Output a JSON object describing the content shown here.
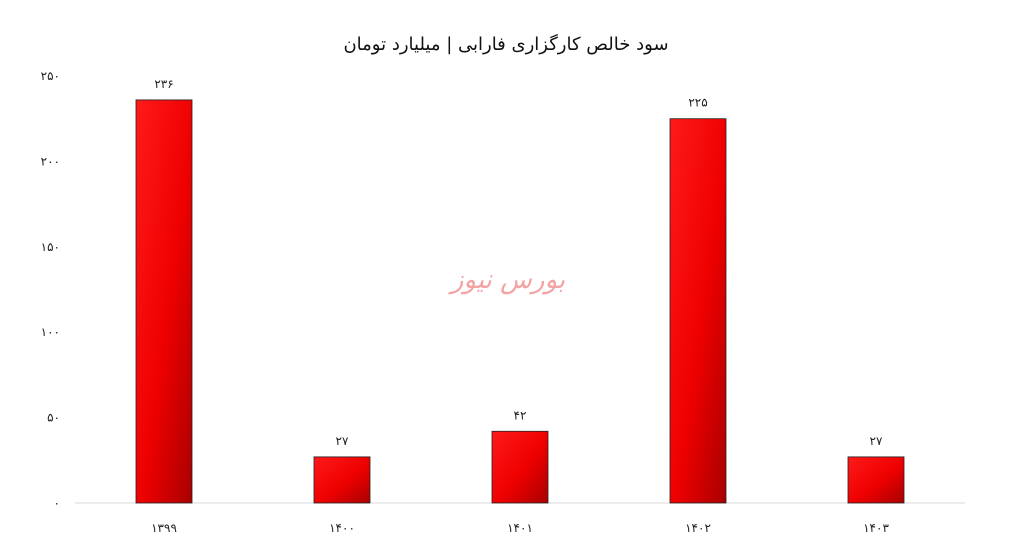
{
  "chart_data": {
    "type": "bar",
    "title": "سود خالص کارگزاری فارابی | میلیارد تومان",
    "categories": [
      "۱۳۹۹",
      "۱۴۰۰",
      "۱۴۰۱",
      "۱۴۰۲",
      "۱۴۰۳"
    ],
    "values": [
      236,
      27,
      42,
      225,
      27
    ],
    "value_labels": [
      "۲۳۶",
      "۲۷",
      "۴۲",
      "۲۲۵",
      "۲۷"
    ],
    "ylim": [
      0,
      250
    ],
    "y_ticks": [
      0,
      50,
      100,
      150,
      200,
      250
    ],
    "y_tick_labels": [
      "۰",
      "۵۰",
      "۱۰۰",
      "۱۵۰",
      "۲۰۰",
      "۲۵۰"
    ],
    "xlabel": "",
    "ylabel": "",
    "grid": false,
    "legend": "none",
    "bar_color": "#ff0000",
    "bar_color_dark": "#b00000"
  },
  "watermark": "بورس نیوز"
}
